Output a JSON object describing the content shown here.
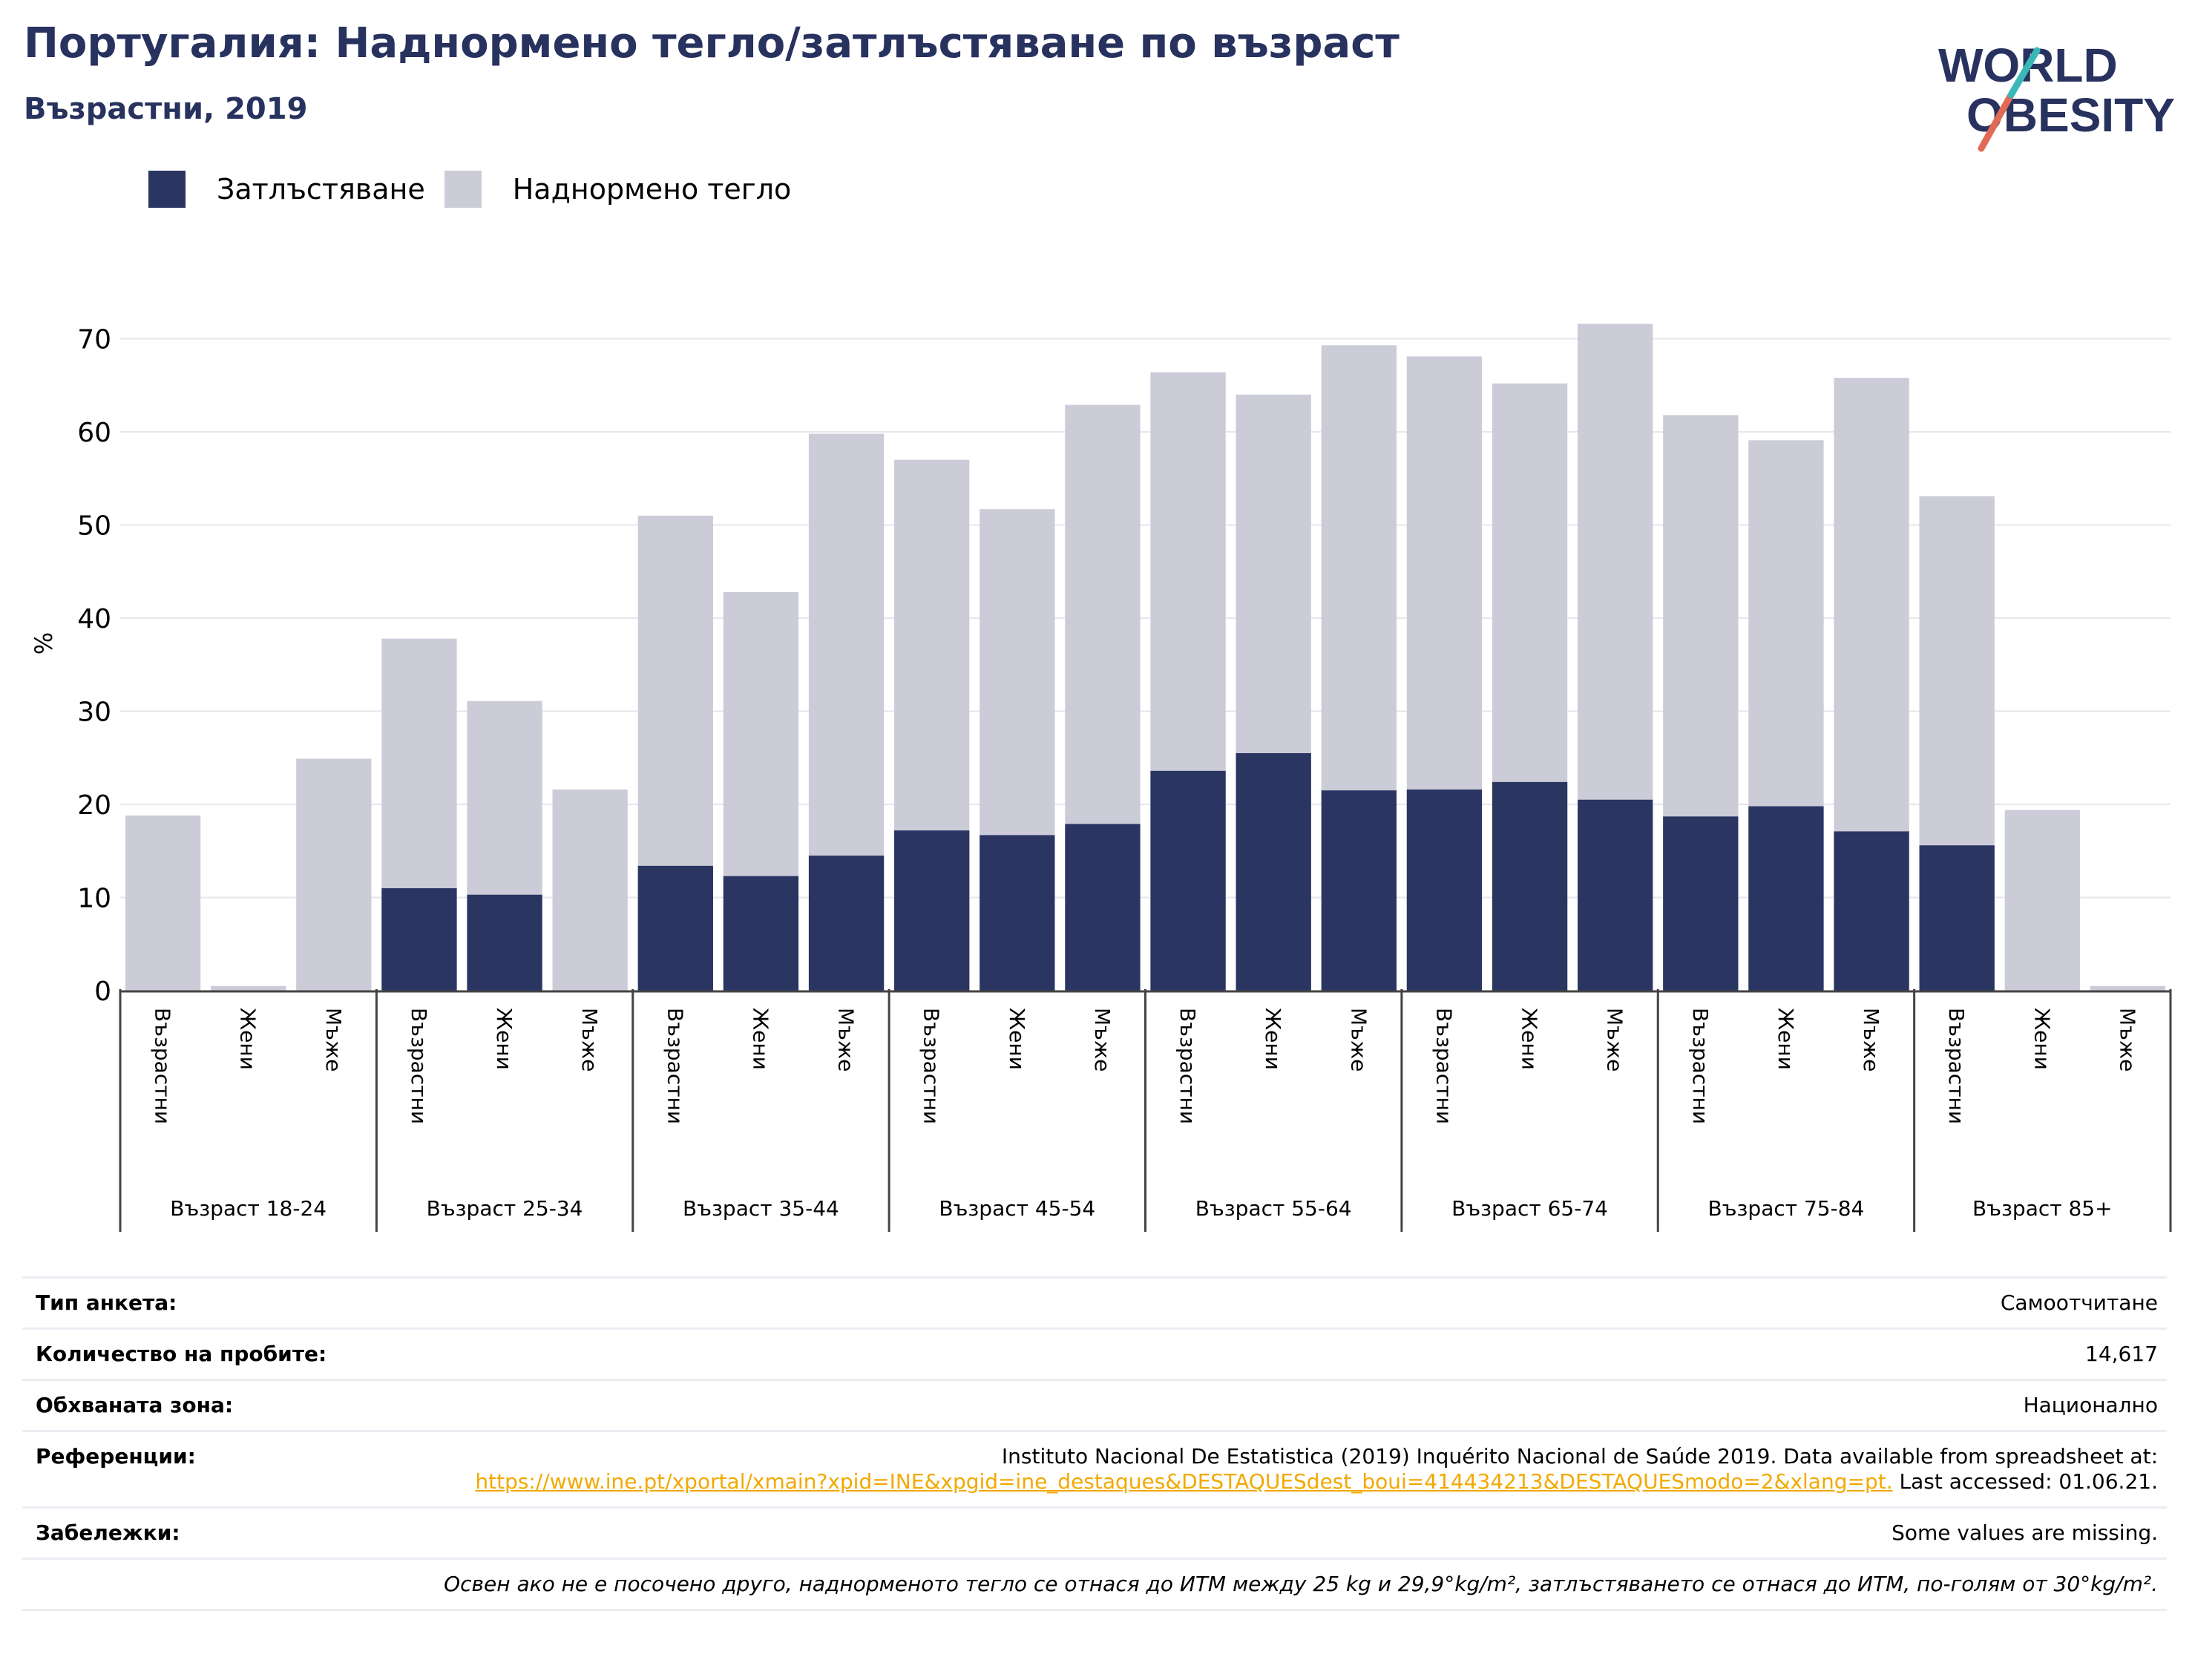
{
  "title": "Португалия: Наднормено тегло/затлъстяване по възраст",
  "subtitle": "Възрастни, 2019",
  "logo": {
    "line1": "WORLD",
    "line2": "OBESITY"
  },
  "legend": [
    {
      "label": "Затлъстяване",
      "color": "#2a3562"
    },
    {
      "label": "Наднормено тегло",
      "color": "#cbccd8"
    }
  ],
  "chart_data": {
    "type": "bar",
    "stacked": false,
    "ylabel": "%",
    "ylim": [
      0,
      75
    ],
    "yticks": [
      0,
      10,
      20,
      30,
      40,
      50,
      60,
      70
    ],
    "grid": true,
    "legend_position": "top-left",
    "groups": [
      "Възраст 18-24",
      "Възраст 25-34",
      "Възраст 35-44",
      "Възраст 45-54",
      "Възраст 55-64",
      "Възраст 65-74",
      "Възраст 75-84",
      "Възраст 85+"
    ],
    "subcategories": [
      "Възрастни",
      "Жени",
      "Мъже"
    ],
    "series": [
      {
        "name": "Затлъстяване",
        "color": "#2a3562",
        "values": [
          null,
          null,
          null,
          11.0,
          10.3,
          null,
          13.4,
          12.3,
          14.5,
          17.2,
          16.7,
          17.9,
          23.6,
          25.5,
          21.5,
          21.6,
          22.4,
          20.5,
          18.7,
          19.8,
          17.1,
          15.6,
          null,
          null
        ]
      },
      {
        "name": "Наднормено тегло",
        "color": "#cbccd8",
        "values": [
          18.8,
          0.5,
          24.9,
          37.8,
          31.1,
          21.6,
          51.0,
          42.8,
          59.8,
          57.0,
          51.7,
          62.9,
          66.4,
          64.0,
          69.3,
          68.1,
          65.2,
          71.6,
          61.8,
          59.1,
          65.8,
          53.1,
          19.4,
          0.5
        ]
      }
    ]
  },
  "info": {
    "rows": [
      {
        "label": "Тип анкета:",
        "value": "Самоотчитане"
      },
      {
        "label": "Количество на пробите:",
        "value": "14,617"
      },
      {
        "label": "Обхваната зона:",
        "value": "Национално"
      },
      {
        "label": "Референции:",
        "value_pre": "Instituto Nacional De Estatistica (2019) Inquérito Nacional de Saúde 2019. Data available from spreadsheet at:",
        "link": "https://www.ine.pt/xportal/xmain?xpid=INE&xpgid=ine_destaques&DESTAQUESdest_boui=414434213&DESTAQUESmodo=2&xlang=pt.",
        "value_post": " Last accessed: 01.06.21."
      },
      {
        "label": "Забележки:",
        "value": "Some values are missing."
      }
    ],
    "footnote": "Освен ако не е посочено друго, наднорменото тегло се отнася до ИТМ между 25 kg и 29,9°kg/m², затлъстяването се отнася до ИТМ, по-голям от 30°kg/m²."
  }
}
